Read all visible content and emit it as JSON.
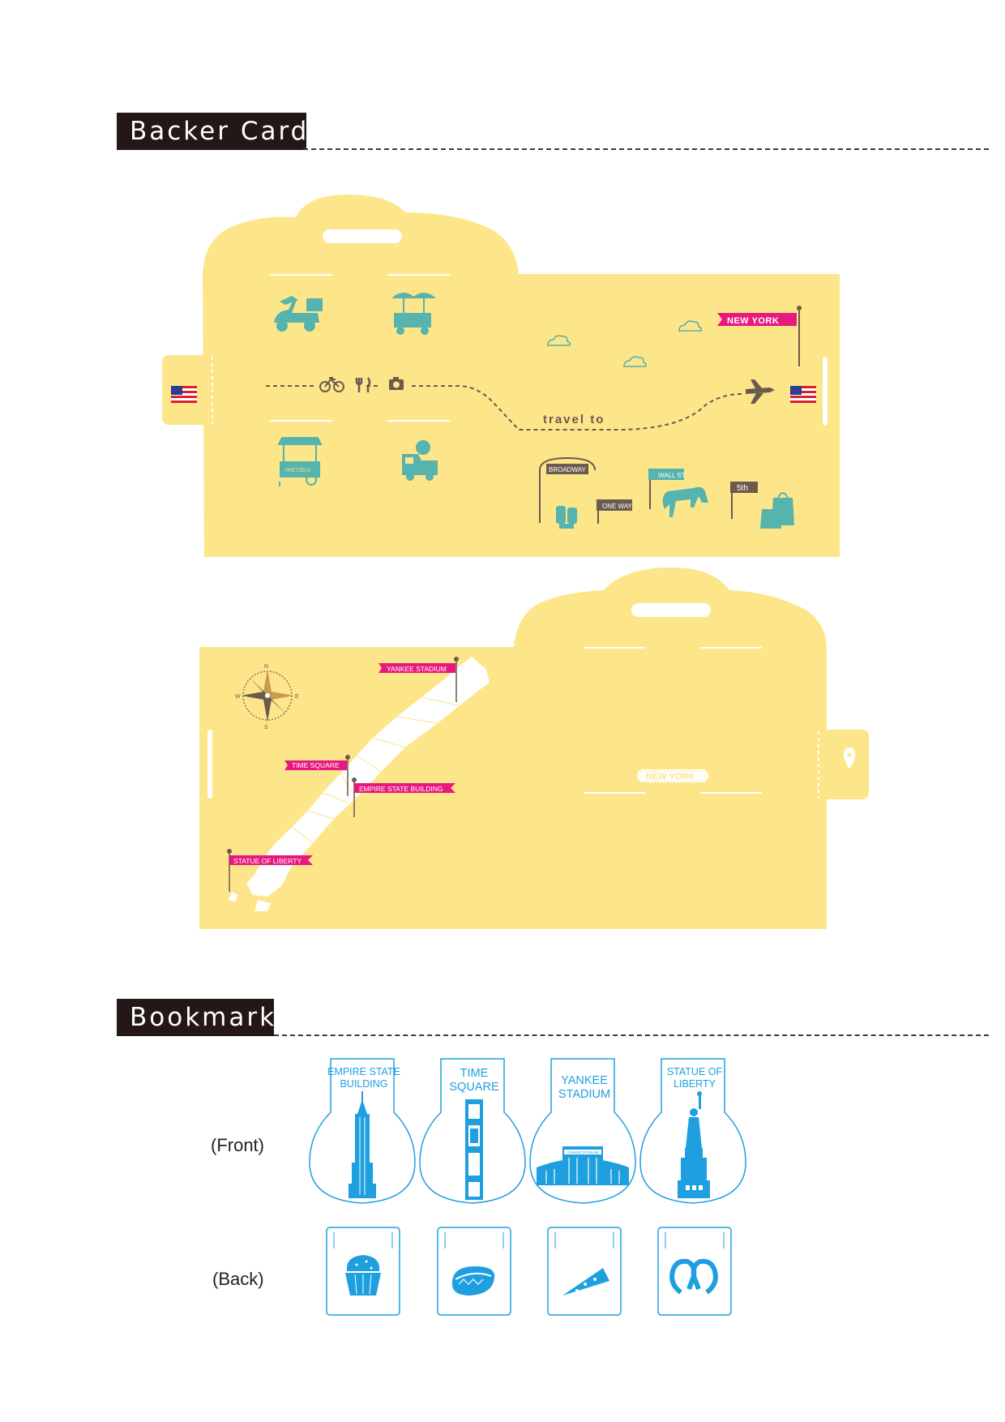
{
  "sections": {
    "backer_card": "Backer Card",
    "bookmark": "Bookmark"
  },
  "colors": {
    "card": "#fde58a",
    "teal": "#56b3ad",
    "brown": "#6b5a4e",
    "pink": "#e8197e",
    "blue": "#1e9fe0"
  },
  "backer_front": {
    "flag_label": "NEW YORK",
    "route_label": "travel to",
    "sign_broadway": "BROADWAY",
    "sign_one_way": "ONE WAY",
    "sign_wall_st": "WALL ST",
    "sign_5th": "5th",
    "cart_label": "PRETZELS"
  },
  "backer_back": {
    "compass": {
      "n": "N",
      "s": "S",
      "e": "E",
      "w": "W"
    },
    "places": [
      "YANKEE STADIUM",
      "TIME SQUARE",
      "EMPIRE STATE BUILDING",
      "STATUE OF LIBERTY"
    ],
    "badge": "NEW YORK",
    "stadium_sign": "YANKEE STADIUM"
  },
  "bookmark_labels": {
    "front": "(Front)",
    "back": "(Back)"
  },
  "bookmarks_front": [
    {
      "line1": "EMPIRE STATE",
      "line2": "BUILDING"
    },
    {
      "line1": "TIME",
      "line2": "SQUARE"
    },
    {
      "line1": "YANKEE",
      "line2": "STADIUM"
    },
    {
      "line1": "STATUE OF",
      "line2": "LIBERTY"
    }
  ],
  "bookmarks_back_icons": [
    "cupcake-icon",
    "hotdog-icon",
    "pizza-slice-icon",
    "pretzel-icon"
  ]
}
